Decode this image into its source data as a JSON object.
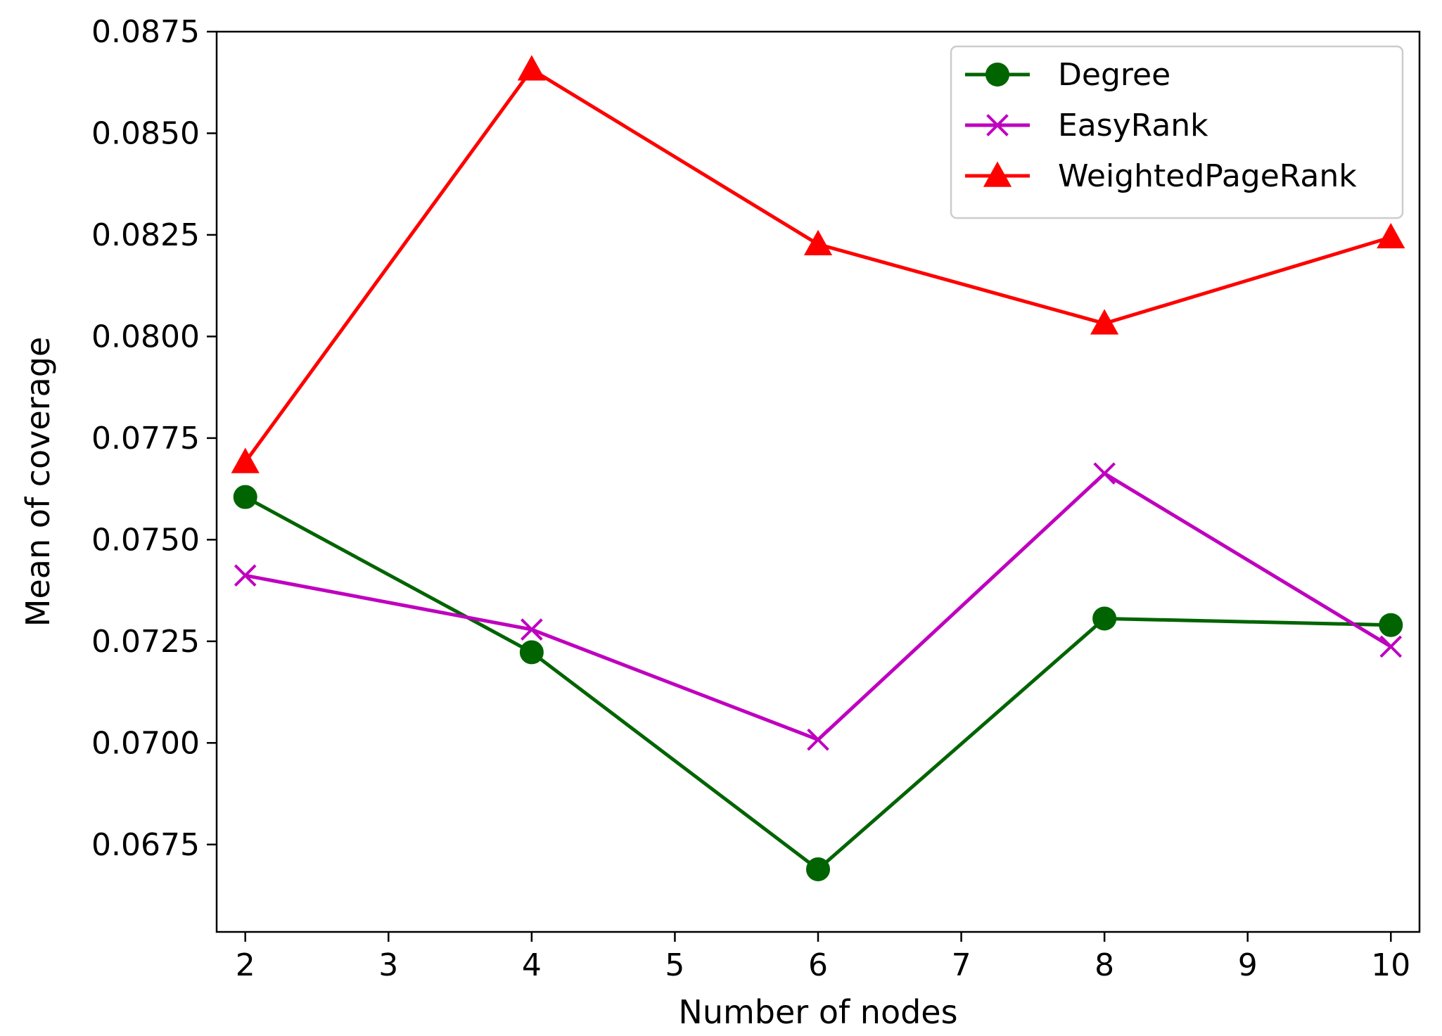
{
  "chart_data": {
    "type": "line",
    "title": "",
    "xlabel": "Number of nodes",
    "ylabel": "Mean of coverage",
    "xlim": [
      1.8,
      10.2
    ],
    "ylim": [
      0.06535,
      0.0875
    ],
    "xticks": [
      2,
      3,
      4,
      5,
      6,
      7,
      8,
      9,
      10
    ],
    "xtick_labels": [
      "2",
      "3",
      "4",
      "5",
      "6",
      "7",
      "8",
      "9",
      "10"
    ],
    "yticks": [
      0.0675,
      0.07,
      0.0725,
      0.075,
      0.0775,
      0.08,
      0.0825,
      0.085,
      0.0875
    ],
    "ytick_labels": [
      "0.0675",
      "0.0700",
      "0.0725",
      "0.0750",
      "0.0775",
      "0.0800",
      "0.0825",
      "0.0850",
      "0.0875"
    ],
    "grid": false,
    "legend_position": "top-right",
    "x": [
      2,
      4,
      6,
      8,
      10
    ],
    "series": [
      {
        "name": "Degree",
        "color": "#006400",
        "marker": "circle",
        "values": [
          0.07605,
          0.07223,
          0.06689,
          0.07306,
          0.0729
        ]
      },
      {
        "name": "EasyRank",
        "color": "#BF00BF",
        "marker": "x",
        "values": [
          0.07412,
          0.07279,
          0.07008,
          0.07663,
          0.07237
        ]
      },
      {
        "name": "WeightedPageRank",
        "color": "#FF0000",
        "marker": "triangle",
        "values": [
          0.07691,
          0.08657,
          0.08227,
          0.08032,
          0.08244
        ]
      }
    ]
  }
}
